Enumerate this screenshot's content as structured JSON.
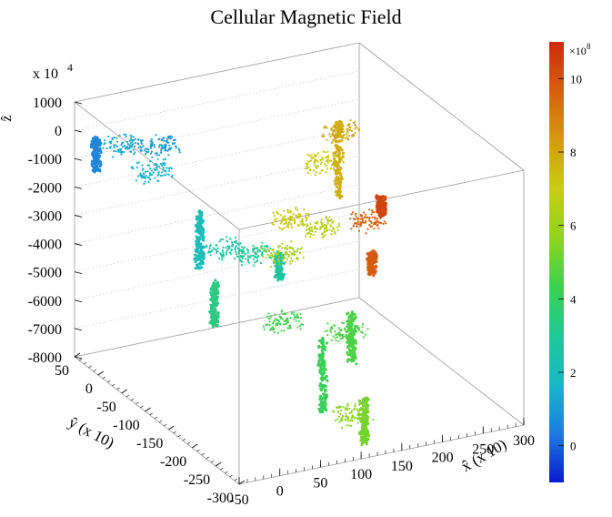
{
  "chart_data": {
    "type": "scatter3d",
    "title": "Cellular Magnetic Field",
    "z_exponent_label": "x 10",
    "z_exponent_power": "4",
    "axes": {
      "x": {
        "label": "x̂ (x 10)",
        "range": [
          -50,
          300
        ],
        "ticks": [
          -50,
          0,
          50,
          100,
          150,
          200,
          250,
          300
        ]
      },
      "y": {
        "label": "ŷ (x 10)",
        "range": [
          -300,
          50
        ],
        "ticks": [
          50,
          0,
          -50,
          -100,
          -150,
          -200,
          -250,
          -300
        ]
      },
      "z": {
        "label": "ẑ",
        "range": [
          -8000,
          1000
        ],
        "ticks": [
          1000,
          0,
          -1000,
          -2000,
          -3000,
          -4000,
          -5000,
          -6000,
          -7000,
          -8000
        ]
      }
    },
    "colorbar": {
      "multiplier": "×10",
      "multiplier_power": "8",
      "range": [
        -1,
        11
      ],
      "ticks": [
        0,
        2,
        4,
        6,
        8,
        10
      ],
      "colors": [
        "#0a1ad0",
        "#1e7be0",
        "#19b8c8",
        "#1fc896",
        "#3cd150",
        "#8fd41e",
        "#c9cc14",
        "#d49a10",
        "#d6600e",
        "#cc2a0c"
      ]
    },
    "clusters": [
      {
        "x": -42,
        "y": 18,
        "z": 100,
        "value": 0.6,
        "kind": "column",
        "height": 1200
      },
      {
        "x": -20,
        "y": -5,
        "z": 0,
        "value": 1.3,
        "kind": "blob"
      },
      {
        "x": 0,
        "y": -30,
        "z": -700,
        "value": 1.5,
        "kind": "blob"
      },
      {
        "x": 20,
        "y": -10,
        "z": -200,
        "value": 1.0,
        "kind": "blob"
      },
      {
        "x": 40,
        "y": -60,
        "z": -2000,
        "value": 2.0,
        "kind": "column",
        "height": 2000
      },
      {
        "x": 60,
        "y": -80,
        "z": -3200,
        "value": 2.6,
        "kind": "blob"
      },
      {
        "x": 35,
        "y": -100,
        "z": -3900,
        "value": 3.4,
        "kind": "column",
        "height": 1600
      },
      {
        "x": 90,
        "y": -90,
        "z": -3400,
        "value": 3.0,
        "kind": "blob"
      },
      {
        "x": 115,
        "y": -100,
        "z": -3400,
        "value": 2.8,
        "kind": "column",
        "height": 900
      },
      {
        "x": 90,
        "y": -150,
        "z": -5000,
        "value": 4.4,
        "kind": "blob"
      },
      {
        "x": 125,
        "y": -175,
        "z": -5500,
        "value": 4.2,
        "kind": "column",
        "height": 2600
      },
      {
        "x": 160,
        "y": -165,
        "z": -5600,
        "value": 4.6,
        "kind": "blob"
      },
      {
        "x": 175,
        "y": -150,
        "z": -5200,
        "value": 4.6,
        "kind": "column",
        "height": 1800
      },
      {
        "x": 150,
        "y": -220,
        "z": -7200,
        "value": 5.2,
        "kind": "column",
        "height": 1600
      },
      {
        "x": 130,
        "y": -230,
        "z": -7500,
        "value": 5.6,
        "kind": "blob"
      },
      {
        "x": 190,
        "y": -60,
        "z": -3500,
        "value": 6.5,
        "kind": "blob"
      },
      {
        "x": 215,
        "y": -20,
        "z": -1800,
        "value": 7.0,
        "kind": "blob"
      },
      {
        "x": 240,
        "y": -10,
        "z": -600,
        "value": 7.8,
        "kind": "column",
        "height": 2800
      },
      {
        "x": 250,
        "y": 0,
        "z": -1200,
        "value": 8.0,
        "kind": "blob"
      },
      {
        "x": 240,
        "y": -70,
        "z": -3400,
        "value": 9.6,
        "kind": "blob"
      },
      {
        "x": 235,
        "y": -90,
        "z": -4200,
        "value": 9.8,
        "kind": "column",
        "height": 800
      },
      {
        "x": 275,
        "y": -40,
        "z": -3100,
        "value": 10.3,
        "kind": "column",
        "height": 700
      },
      {
        "x": 130,
        "y": -80,
        "z": -3800,
        "value": 6.2,
        "kind": "blob"
      },
      {
        "x": 170,
        "y": -30,
        "z": -3400,
        "value": 7.2,
        "kind": "blob"
      }
    ]
  }
}
